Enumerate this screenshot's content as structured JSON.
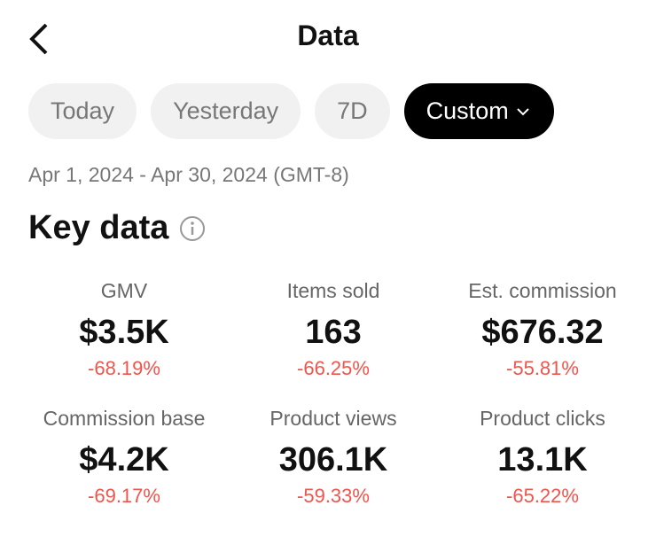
{
  "header": {
    "title": "Data"
  },
  "tabs": [
    "Today",
    "Yesterday",
    "7D",
    "Custom"
  ],
  "date_range": "Apr 1, 2024 - Apr 30, 2024 (GMT-8)",
  "section": {
    "title": "Key data"
  },
  "metrics": [
    {
      "label": "GMV",
      "value": "$3.5K",
      "change": "-68.19%"
    },
    {
      "label": "Items sold",
      "value": "163",
      "change": "-66.25%"
    },
    {
      "label": "Est. commission",
      "value": "$676.32",
      "change": "-55.81%"
    },
    {
      "label": "Commission base",
      "value": "$4.2K",
      "change": "-69.17%"
    },
    {
      "label": "Product views",
      "value": "306.1K",
      "change": "-59.33%"
    },
    {
      "label": "Product clicks",
      "value": "13.1K",
      "change": "-65.22%"
    }
  ]
}
